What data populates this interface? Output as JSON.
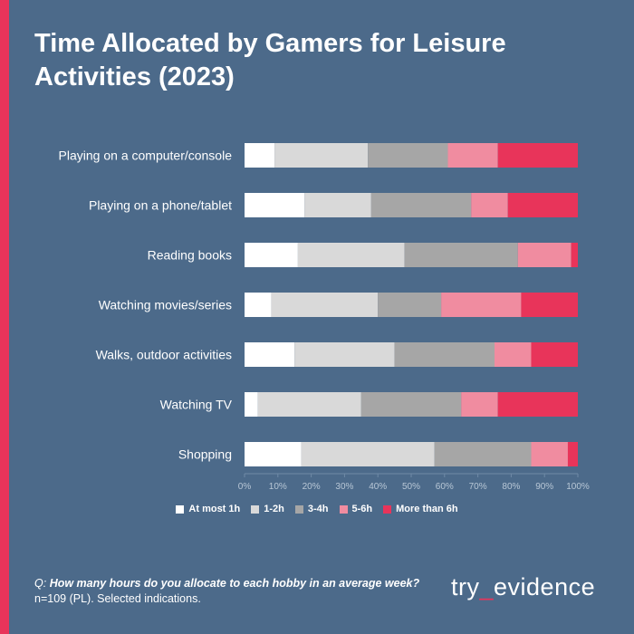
{
  "title": "Time Allocated by Gamers for Leisure Activities (2023)",
  "colors": {
    "background": "#4c6a8a",
    "accent": "#e8345a",
    "series": [
      "#ffffff",
      "#d9d9d9",
      "#a6a6a6",
      "#f08ca0",
      "#e8345a"
    ]
  },
  "chart_data": {
    "type": "bar",
    "orientation": "horizontal",
    "stacked": "percent",
    "categories": [
      "Playing on a computer/console",
      "Playing on a phone/tablet",
      "Reading books",
      "Watching movies/series",
      "Walks, outdoor activities",
      "Watching TV",
      "Shopping"
    ],
    "series": [
      {
        "name": "At most 1h",
        "values": [
          9,
          18,
          16,
          8,
          15,
          4,
          17
        ]
      },
      {
        "name": "1-2h",
        "values": [
          28,
          20,
          32,
          32,
          30,
          31,
          40
        ]
      },
      {
        "name": "3-4h",
        "values": [
          24,
          30,
          34,
          19,
          30,
          30,
          29
        ]
      },
      {
        "name": "5-6h",
        "values": [
          15,
          11,
          16,
          24,
          11,
          11,
          11
        ]
      },
      {
        "name": "More than 6h",
        "values": [
          24,
          21,
          2,
          17,
          14,
          24,
          3
        ]
      }
    ],
    "x_ticks": [
      "0%",
      "10%",
      "20%",
      "30%",
      "40%",
      "50%",
      "60%",
      "70%",
      "80%",
      "90%",
      "100%"
    ],
    "xlim": [
      0,
      100
    ],
    "legend_position": "bottom",
    "grid": false
  },
  "footer": {
    "question_prefix": "Q:",
    "question": "How many hours do you allocate to each hobby in an average week?",
    "note": "n=109 (PL). Selected indications."
  },
  "logo": {
    "part1": "try",
    "separator": "_",
    "part2": "evidence"
  }
}
